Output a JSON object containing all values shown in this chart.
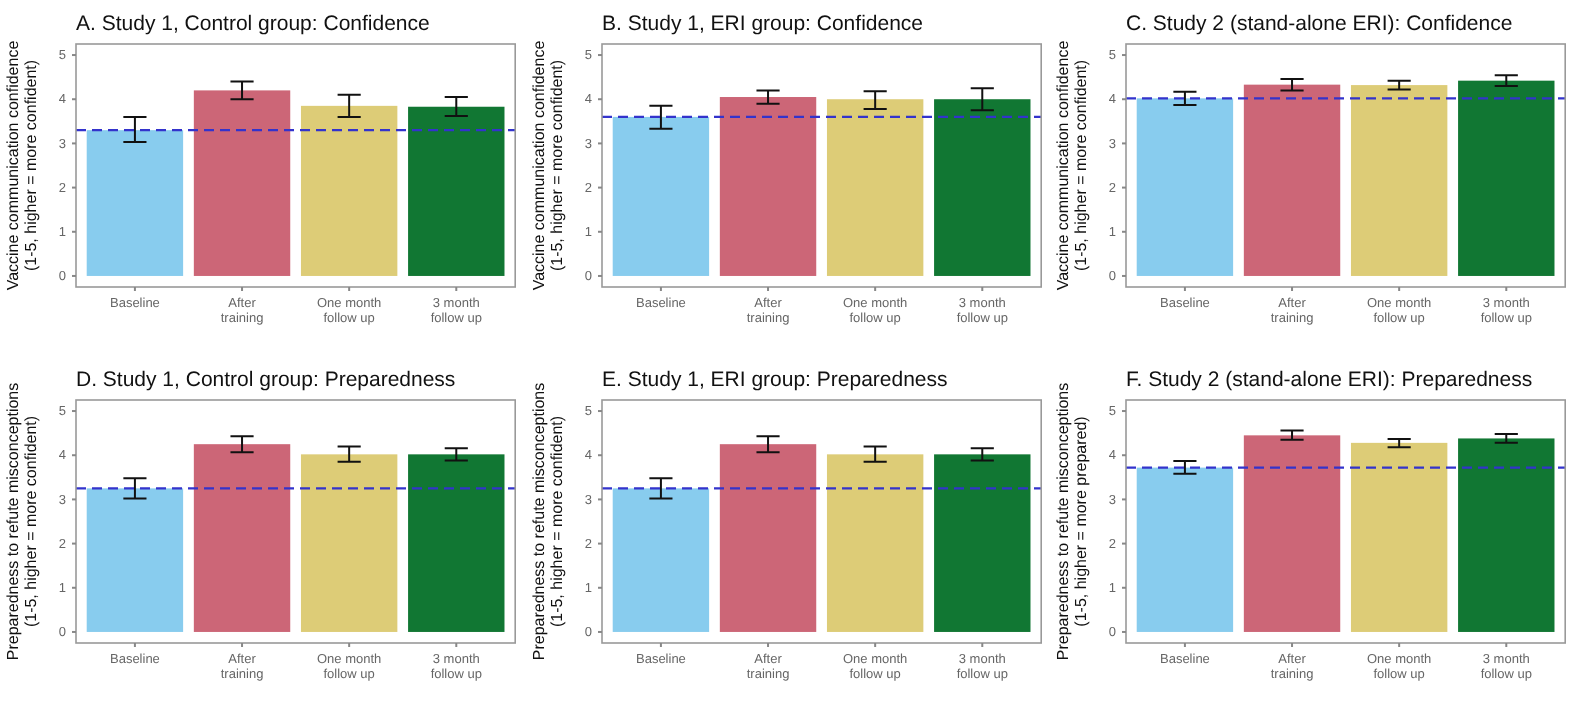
{
  "chart_data": [
    {
      "type": "bar",
      "title": "A. Study 1, Control group: Confidence",
      "ylabel": "Vaccine communication confidence\n(1-5, higher = more confident)",
      "categories": [
        "Baseline",
        "After\ntraining",
        "One month\nfollow up",
        "3 month\nfollow up"
      ],
      "values": [
        3.3,
        4.2,
        3.85,
        3.83
      ],
      "errors": [
        [
          3.03,
          3.6
        ],
        [
          4.0,
          4.4
        ],
        [
          3.6,
          4.1
        ],
        [
          3.62,
          4.05
        ]
      ],
      "colors": [
        "#88ccee",
        "#cc6677",
        "#ddcc77",
        "#117733"
      ],
      "ylim": [
        -0.25,
        5.25
      ],
      "yticks": [
        0,
        1,
        2,
        3,
        4,
        5
      ],
      "ref_lines": [
        {
          "axis": "y",
          "value": 3.3,
          "color": "#3333cc",
          "line_style": "dashed"
        }
      ]
    },
    {
      "type": "bar",
      "title": "B. Study 1, ERI group: Confidence",
      "ylabel": "Vaccine communication confidence\n(1-5, higher = more confident)",
      "categories": [
        "Baseline",
        "After\ntraining",
        "One month\nfollow up",
        "3 month\nfollow up"
      ],
      "values": [
        3.6,
        4.05,
        4.0,
        4.0
      ],
      "errors": [
        [
          3.33,
          3.85
        ],
        [
          3.9,
          4.2
        ],
        [
          3.78,
          4.18
        ],
        [
          3.75,
          4.25
        ]
      ],
      "colors": [
        "#88ccee",
        "#cc6677",
        "#ddcc77",
        "#117733"
      ],
      "ylim": [
        -0.25,
        5.25
      ],
      "yticks": [
        0,
        1,
        2,
        3,
        4,
        5
      ],
      "ref_lines": [
        {
          "axis": "y",
          "value": 3.6,
          "color": "#3333cc",
          "line_style": "dashed"
        }
      ]
    },
    {
      "type": "bar",
      "title": "C. Study 2 (stand-alone ERI): Confidence",
      "ylabel": "Vaccine communication confidence\n(1-5, higher = more confident)",
      "categories": [
        "Baseline",
        "After\ntraining",
        "One month\nfollow up",
        "3 month\nfollow up"
      ],
      "values": [
        4.02,
        4.33,
        4.32,
        4.42
      ],
      "errors": [
        [
          3.87,
          4.17
        ],
        [
          4.2,
          4.46
        ],
        [
          4.22,
          4.42
        ],
        [
          4.3,
          4.54
        ]
      ],
      "colors": [
        "#88ccee",
        "#cc6677",
        "#ddcc77",
        "#117733"
      ],
      "ylim": [
        -0.25,
        5.25
      ],
      "yticks": [
        0,
        1,
        2,
        3,
        4,
        5
      ],
      "ref_lines": [
        {
          "axis": "y",
          "value": 4.02,
          "color": "#3333cc",
          "line_style": "dashed"
        }
      ]
    },
    {
      "type": "bar",
      "title": "D. Study 1, Control group: Preparedness",
      "ylabel": "Preparedness to refute misconceptions\n(1-5, higher = more confident)",
      "categories": [
        "Baseline",
        "After\ntraining",
        "One month\nfollow up",
        "3 month\nfollow up"
      ],
      "values": [
        3.25,
        4.25,
        4.02,
        4.02
      ],
      "errors": [
        [
          3.02,
          3.48
        ],
        [
          4.07,
          4.43
        ],
        [
          3.85,
          4.2
        ],
        [
          3.88,
          4.16
        ]
      ],
      "colors": [
        "#88ccee",
        "#cc6677",
        "#ddcc77",
        "#117733"
      ],
      "ylim": [
        -0.25,
        5.25
      ],
      "yticks": [
        0,
        1,
        2,
        3,
        4,
        5
      ],
      "ref_lines": [
        {
          "axis": "y",
          "value": 3.25,
          "color": "#3333cc",
          "line_style": "dashed"
        }
      ]
    },
    {
      "type": "bar",
      "title": "E. Study 1, ERI group: Preparedness",
      "ylabel": "Preparedness to refute misconceptions\n(1-5, higher = more confident)",
      "categories": [
        "Baseline",
        "After\ntraining",
        "One month\nfollow up",
        "3 month\nfollow up"
      ],
      "values": [
        3.25,
        4.25,
        4.02,
        4.02
      ],
      "errors": [
        [
          3.02,
          3.48
        ],
        [
          4.07,
          4.43
        ],
        [
          3.85,
          4.2
        ],
        [
          3.88,
          4.16
        ]
      ],
      "colors": [
        "#88ccee",
        "#cc6677",
        "#ddcc77",
        "#117733"
      ],
      "ylim": [
        -0.25,
        5.25
      ],
      "yticks": [
        0,
        1,
        2,
        3,
        4,
        5
      ],
      "ref_lines": [
        {
          "axis": "y",
          "value": 3.25,
          "color": "#3333cc",
          "line_style": "dashed"
        }
      ]
    },
    {
      "type": "bar",
      "title": "F. Study 2 (stand-alone ERI): Preparedness",
      "ylabel": "Preparedness to refute misconceptions\n(1-5, higher = more prepared)",
      "categories": [
        "Baseline",
        "After\ntraining",
        "One month\nfollow up",
        "3 month\nfollow up"
      ],
      "values": [
        3.72,
        4.45,
        4.28,
        4.38
      ],
      "errors": [
        [
          3.58,
          3.87
        ],
        [
          4.35,
          4.56
        ],
        [
          4.18,
          4.37
        ],
        [
          4.28,
          4.48
        ]
      ],
      "colors": [
        "#88ccee",
        "#cc6677",
        "#ddcc77",
        "#117733"
      ],
      "ylim": [
        -0.25,
        5.25
      ],
      "yticks": [
        0,
        1,
        2,
        3,
        4,
        5
      ],
      "ref_lines": [
        {
          "axis": "y",
          "value": 3.72,
          "color": "#3333cc",
          "line_style": "dashed"
        }
      ]
    }
  ]
}
